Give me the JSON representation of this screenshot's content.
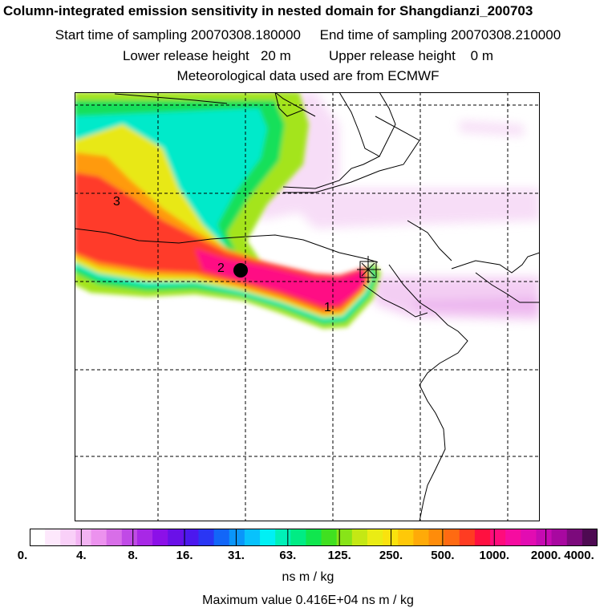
{
  "title": {
    "line1": "Column-integrated emission sensitivity in nested domain for Shangdianzi_200703",
    "line2": "Start time of sampling 20070308.180000     End time of sampling 20070308.210000",
    "line3": "Lower release height   20 m          Upper release height    0 m",
    "line4": "Meteorological data used are from ECMWF"
  },
  "map": {
    "point_labels": [
      "1",
      "2",
      "3"
    ]
  },
  "legend": {
    "colors": [
      "#ffffff",
      "#fde8fc",
      "#f9d0f8",
      "#f3b4f3",
      "#ec92ee",
      "#d86ee8",
      "#c04ae6",
      "#a828e6",
      "#8c10e8",
      "#6a10e8",
      "#4c18ee",
      "#2a36f4",
      "#1266f8",
      "#0a96fa",
      "#08c2fc",
      "#00f0f4",
      "#00f0b8",
      "#00ec84",
      "#10e64e",
      "#40e020",
      "#88e418",
      "#c4e814",
      "#eaec14",
      "#fae20e",
      "#ffc808",
      "#ffaa08",
      "#ff8c0a",
      "#ff6a12",
      "#ff3c22",
      "#ff1040",
      "#ff0c7c",
      "#f60ca0",
      "#e20cb2",
      "#c60ab2",
      "#a808a0",
      "#7c0a7c",
      "#4e0a52"
    ],
    "tick_labels": [
      "0.",
      "4.",
      "8.",
      "16.",
      "31.",
      "63.",
      "125.",
      "250.",
      "500.",
      "1000.",
      "2000.",
      "4000."
    ],
    "unit": "ns m / kg",
    "max_value_text": "Maximum value  0.416E+04 ns m / kg"
  }
}
